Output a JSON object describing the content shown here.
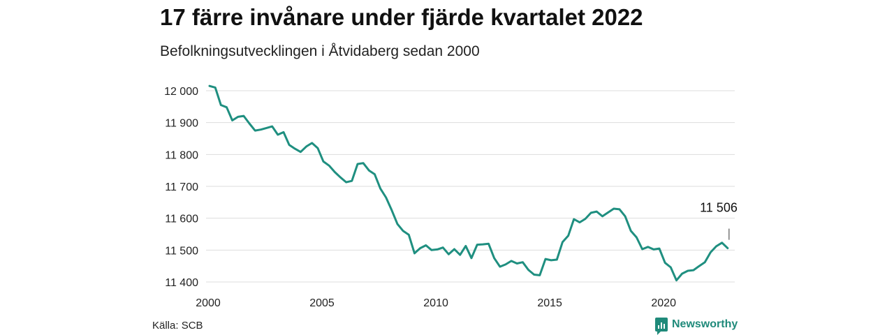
{
  "title": "17 färre invånare under fjärde kvartalet 2022",
  "subtitle": "Befolkningsutvecklingen i Åtvidaberg sedan 2000",
  "source": "Källa: SCB",
  "brand": "Newsworthy",
  "colors": {
    "line": "#1f8f80",
    "grid": "#dddddd",
    "brand": "#1f8a7a"
  },
  "chart_data": {
    "type": "line",
    "title": "17 färre invånare under fjärde kvartalet 2022",
    "subtitle": "Befolkningsutvecklingen i Åtvidaberg sedan 2000",
    "ylim": [
      11400,
      12000
    ],
    "xlim": [
      2000,
      2023
    ],
    "y_ticks": [
      12000,
      11900,
      11800,
      11700,
      11600,
      11500,
      11400
    ],
    "y_tick_labels": [
      "12 000",
      "11 900",
      "11 800",
      "11 700",
      "11 600",
      "11 500",
      "11 400"
    ],
    "x_ticks": [
      2000,
      2005,
      2010,
      2015,
      2020
    ],
    "x_tick_labels": [
      "2000",
      "2005",
      "2010",
      "2015",
      "2020"
    ],
    "grid": true,
    "annotation": {
      "label": "11 506",
      "x": 2022.75,
      "y": 11506
    },
    "series": [
      {
        "x": [
          2000.0,
          2000.25,
          2000.5,
          2000.75,
          2001.0,
          2001.25,
          2001.5,
          2001.75,
          2002.0,
          2002.25,
          2002.5,
          2002.75,
          2003.0,
          2003.25,
          2003.5,
          2003.75,
          2004.0,
          2004.25,
          2004.5,
          2004.75,
          2005.0,
          2005.25,
          2005.5,
          2005.75,
          2006.0,
          2006.25,
          2006.5,
          2006.75,
          2007.0,
          2007.25,
          2007.5,
          2007.75,
          2008.0,
          2008.25,
          2008.5,
          2008.75,
          2009.0,
          2009.25,
          2009.5,
          2009.75,
          2010.0,
          2010.25,
          2010.5,
          2010.75,
          2011.0,
          2011.25,
          2011.5,
          2011.75,
          2012.0,
          2012.25,
          2012.5,
          2012.75,
          2013.0,
          2013.25,
          2013.5,
          2013.75,
          2014.0,
          2014.25,
          2014.5,
          2014.75,
          2015.0,
          2015.25,
          2015.5,
          2015.75,
          2016.0,
          2016.25,
          2016.5,
          2016.75,
          2017.0,
          2017.25,
          2017.5,
          2017.75,
          2018.0,
          2018.25,
          2018.5,
          2018.75,
          2019.0,
          2019.25,
          2019.5,
          2019.75,
          2020.0,
          2020.25,
          2020.5,
          2020.75,
          2021.0,
          2021.25,
          2021.5,
          2021.75,
          2022.0,
          2022.25,
          2022.5,
          2022.75
        ],
        "values": [
          12015,
          12010,
          11955,
          11948,
          11907,
          11918,
          11921,
          11897,
          11875,
          11878,
          11883,
          11888,
          11862,
          11870,
          11830,
          11818,
          11808,
          11825,
          11836,
          11820,
          11778,
          11765,
          11745,
          11728,
          11713,
          11717,
          11770,
          11773,
          11750,
          11738,
          11693,
          11665,
          11625,
          11582,
          11560,
          11548,
          11490,
          11506,
          11515,
          11500,
          11502,
          11508,
          11487,
          11503,
          11485,
          11513,
          11475,
          11517,
          11518,
          11520,
          11475,
          11448,
          11455,
          11466,
          11458,
          11462,
          11438,
          11423,
          11421,
          11472,
          11468,
          11470,
          11525,
          11545,
          11597,
          11587,
          11598,
          11617,
          11621,
          11606,
          11618,
          11630,
          11628,
          11606,
          11560,
          11540,
          11503,
          11510,
          11502,
          11505,
          11460,
          11446,
          11405,
          11426,
          11435,
          11437,
          11450,
          11462,
          11493,
          11512,
          11523,
          11506
        ]
      }
    ]
  }
}
